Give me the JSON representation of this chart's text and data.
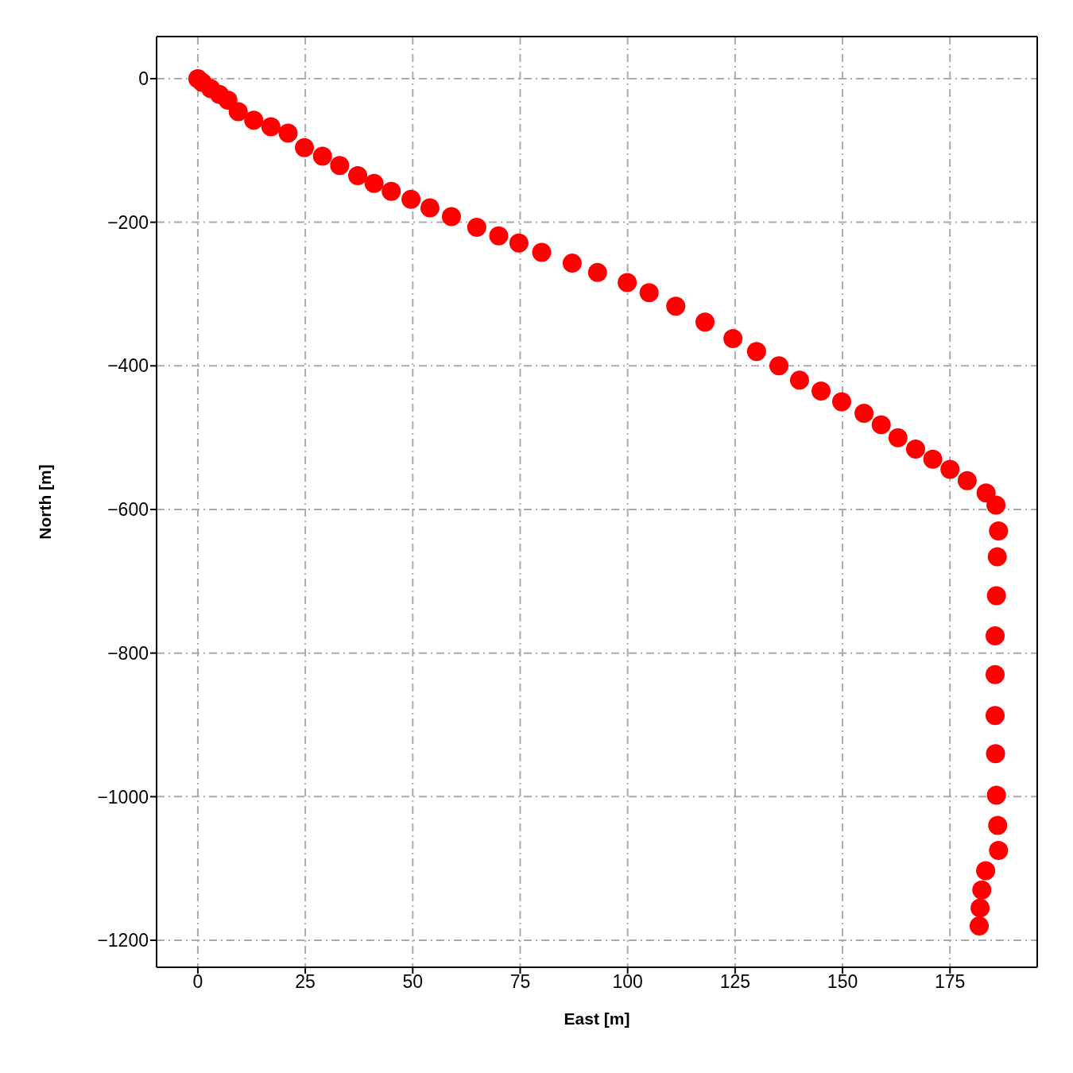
{
  "chart_data": {
    "type": "scatter",
    "xlabel": "East [m]",
    "ylabel": "North [m]",
    "x": [
      0,
      1,
      3,
      5,
      7,
      9.4,
      13,
      17,
      21,
      24.8,
      29,
      33,
      37.2,
      41,
      45,
      49.6,
      54,
      59,
      64.9,
      70,
      74.7,
      80,
      87.1,
      93,
      99.9,
      105,
      111.2,
      118,
      124.5,
      130,
      135.2,
      140,
      145,
      149.8,
      155,
      159,
      162.9,
      167,
      171,
      175,
      179,
      183.4,
      185.7,
      186.3,
      186,
      185.8,
      185.5,
      185.5,
      185.5,
      185.6,
      185.8,
      186.1,
      186.3,
      183.3,
      182.4,
      182,
      181.8
    ],
    "values": [
      0,
      -5,
      -14,
      -22,
      -30,
      -46,
      -58,
      -67,
      -76,
      -96,
      -108,
      -121,
      -135,
      -146,
      -157,
      -168,
      -180,
      -192,
      -207,
      -219,
      -229,
      -242,
      -257,
      -270,
      -284,
      -298,
      -317,
      -339,
      -362,
      -380,
      -400,
      -420,
      -435,
      -450,
      -466,
      -482,
      -500,
      -516,
      -530,
      -544,
      -560,
      -577,
      -594,
      -630,
      -666,
      -720,
      -776,
      -830,
      -887,
      -940,
      -998,
      -1040,
      -1075,
      -1103,
      -1130,
      -1155,
      -1180
    ],
    "color": "#ff0000",
    "marker": "circle",
    "grid": true,
    "xlim": [
      -9.6,
      195.3
    ],
    "xticks": [
      0,
      25,
      50,
      75,
      100,
      125,
      150,
      175
    ],
    "ylim": [
      -1237.6,
      58.6
    ],
    "yticks": [
      0,
      -200,
      -400,
      -600,
      -800,
      -1000,
      -1200
    ]
  }
}
